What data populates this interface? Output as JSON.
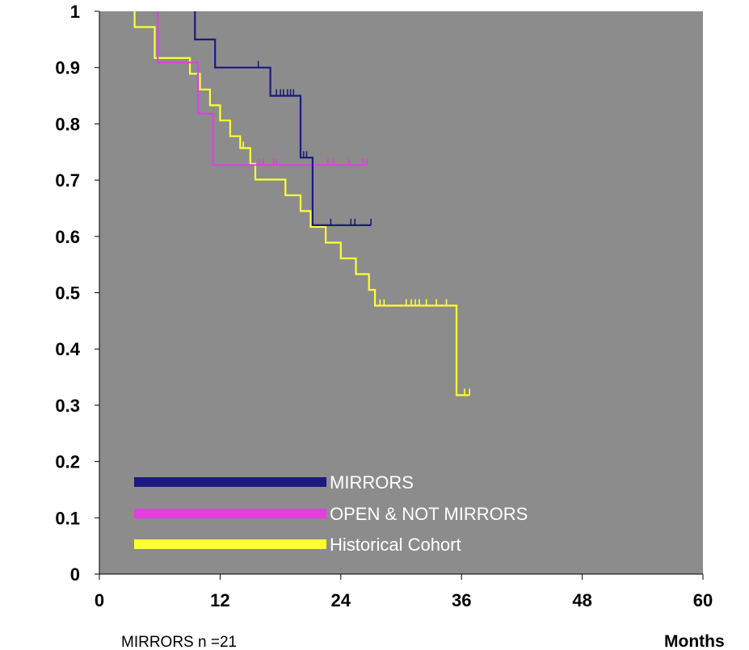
{
  "chart_data": {
    "type": "line",
    "step": true,
    "background_color": "#8c8c8c",
    "xlabel": "Months",
    "ylabel": "",
    "xlim": [
      0,
      60
    ],
    "ylim": [
      0,
      1
    ],
    "x_ticks": [
      0,
      12,
      24,
      36,
      48,
      60
    ],
    "x_tick_labels": [
      "0",
      "12",
      "24",
      "36",
      "48",
      "60"
    ],
    "y_ticks": [
      0,
      0.1,
      0.2,
      0.3,
      0.4,
      0.5,
      0.6,
      0.7,
      0.8,
      0.9,
      1
    ],
    "y_tick_labels": [
      "0",
      "0.1",
      "0.2",
      "0.3",
      "0.4",
      "0.5",
      "0.6",
      "0.7",
      "0.8",
      "0.9",
      "1"
    ],
    "grid": false,
    "legend_position": "bottom-left",
    "footnote": "MIRRORS n =21",
    "series": [
      {
        "name": "MIRRORS",
        "color": "#1a1a80",
        "points": [
          [
            9.5,
            1.0
          ],
          [
            9.5,
            0.95
          ],
          [
            11.5,
            0.95
          ],
          [
            11.5,
            0.9
          ],
          [
            17.0,
            0.9
          ],
          [
            17.0,
            0.85
          ],
          [
            20.0,
            0.85
          ],
          [
            20.0,
            0.74
          ],
          [
            21.2,
            0.74
          ],
          [
            21.2,
            0.62
          ],
          [
            27.0,
            0.62
          ]
        ],
        "censored": [
          [
            15.8,
            0.9
          ],
          [
            17.6,
            0.85
          ],
          [
            18.0,
            0.85
          ],
          [
            18.3,
            0.85
          ],
          [
            18.7,
            0.85
          ],
          [
            19.0,
            0.85
          ],
          [
            19.3,
            0.85
          ],
          [
            20.3,
            0.74
          ],
          [
            20.6,
            0.74
          ],
          [
            23.0,
            0.62
          ],
          [
            25.0,
            0.62
          ],
          [
            25.4,
            0.62
          ],
          [
            27.0,
            0.62
          ]
        ]
      },
      {
        "name": "OPEN & NOT MIRRORS",
        "color": "#e040e0",
        "points": [
          [
            5.8,
            1.0
          ],
          [
            5.8,
            0.909
          ],
          [
            9.8,
            0.909
          ],
          [
            9.8,
            0.818
          ],
          [
            11.3,
            0.818
          ],
          [
            11.3,
            0.727
          ],
          [
            26.6,
            0.727
          ]
        ],
        "censored": [
          [
            15.9,
            0.727
          ],
          [
            16.3,
            0.727
          ],
          [
            17.3,
            0.727
          ],
          [
            17.6,
            0.727
          ],
          [
            22.7,
            0.727
          ],
          [
            23.3,
            0.727
          ],
          [
            24.8,
            0.727
          ],
          [
            26.2,
            0.727
          ],
          [
            26.6,
            0.727
          ]
        ]
      },
      {
        "name": "Historical Cohort",
        "color": "#ffff33",
        "points": [
          [
            3.5,
            1.0
          ],
          [
            3.5,
            0.972
          ],
          [
            5.5,
            0.972
          ],
          [
            5.5,
            0.917
          ],
          [
            9.0,
            0.917
          ],
          [
            9.0,
            0.889
          ],
          [
            10.0,
            0.889
          ],
          [
            10.0,
            0.861
          ],
          [
            11.0,
            0.861
          ],
          [
            11.0,
            0.833
          ],
          [
            12.0,
            0.833
          ],
          [
            12.0,
            0.806
          ],
          [
            13.0,
            0.806
          ],
          [
            13.0,
            0.778
          ],
          [
            14.0,
            0.778
          ],
          [
            14.0,
            0.757
          ],
          [
            15.0,
            0.757
          ],
          [
            15.0,
            0.729
          ],
          [
            15.5,
            0.729
          ],
          [
            15.5,
            0.701
          ],
          [
            18.5,
            0.701
          ],
          [
            18.5,
            0.673
          ],
          [
            20.0,
            0.673
          ],
          [
            20.0,
            0.645
          ],
          [
            21.0,
            0.645
          ],
          [
            21.0,
            0.617
          ],
          [
            22.5,
            0.617
          ],
          [
            22.5,
            0.589
          ],
          [
            24.0,
            0.589
          ],
          [
            24.0,
            0.561
          ],
          [
            25.5,
            0.561
          ],
          [
            25.5,
            0.533
          ],
          [
            26.8,
            0.533
          ],
          [
            26.8,
            0.505
          ],
          [
            27.4,
            0.505
          ],
          [
            27.4,
            0.477
          ],
          [
            35.5,
            0.477
          ],
          [
            35.5,
            0.318
          ],
          [
            36.8,
            0.318
          ]
        ],
        "censored": [
          [
            14.3,
            0.757
          ],
          [
            27.9,
            0.477
          ],
          [
            28.3,
            0.477
          ],
          [
            30.5,
            0.477
          ],
          [
            31.0,
            0.477
          ],
          [
            31.4,
            0.477
          ],
          [
            31.8,
            0.477
          ],
          [
            32.5,
            0.477
          ],
          [
            33.5,
            0.477
          ],
          [
            34.5,
            0.477
          ],
          [
            36.3,
            0.318
          ],
          [
            36.8,
            0.318
          ]
        ]
      }
    ]
  }
}
